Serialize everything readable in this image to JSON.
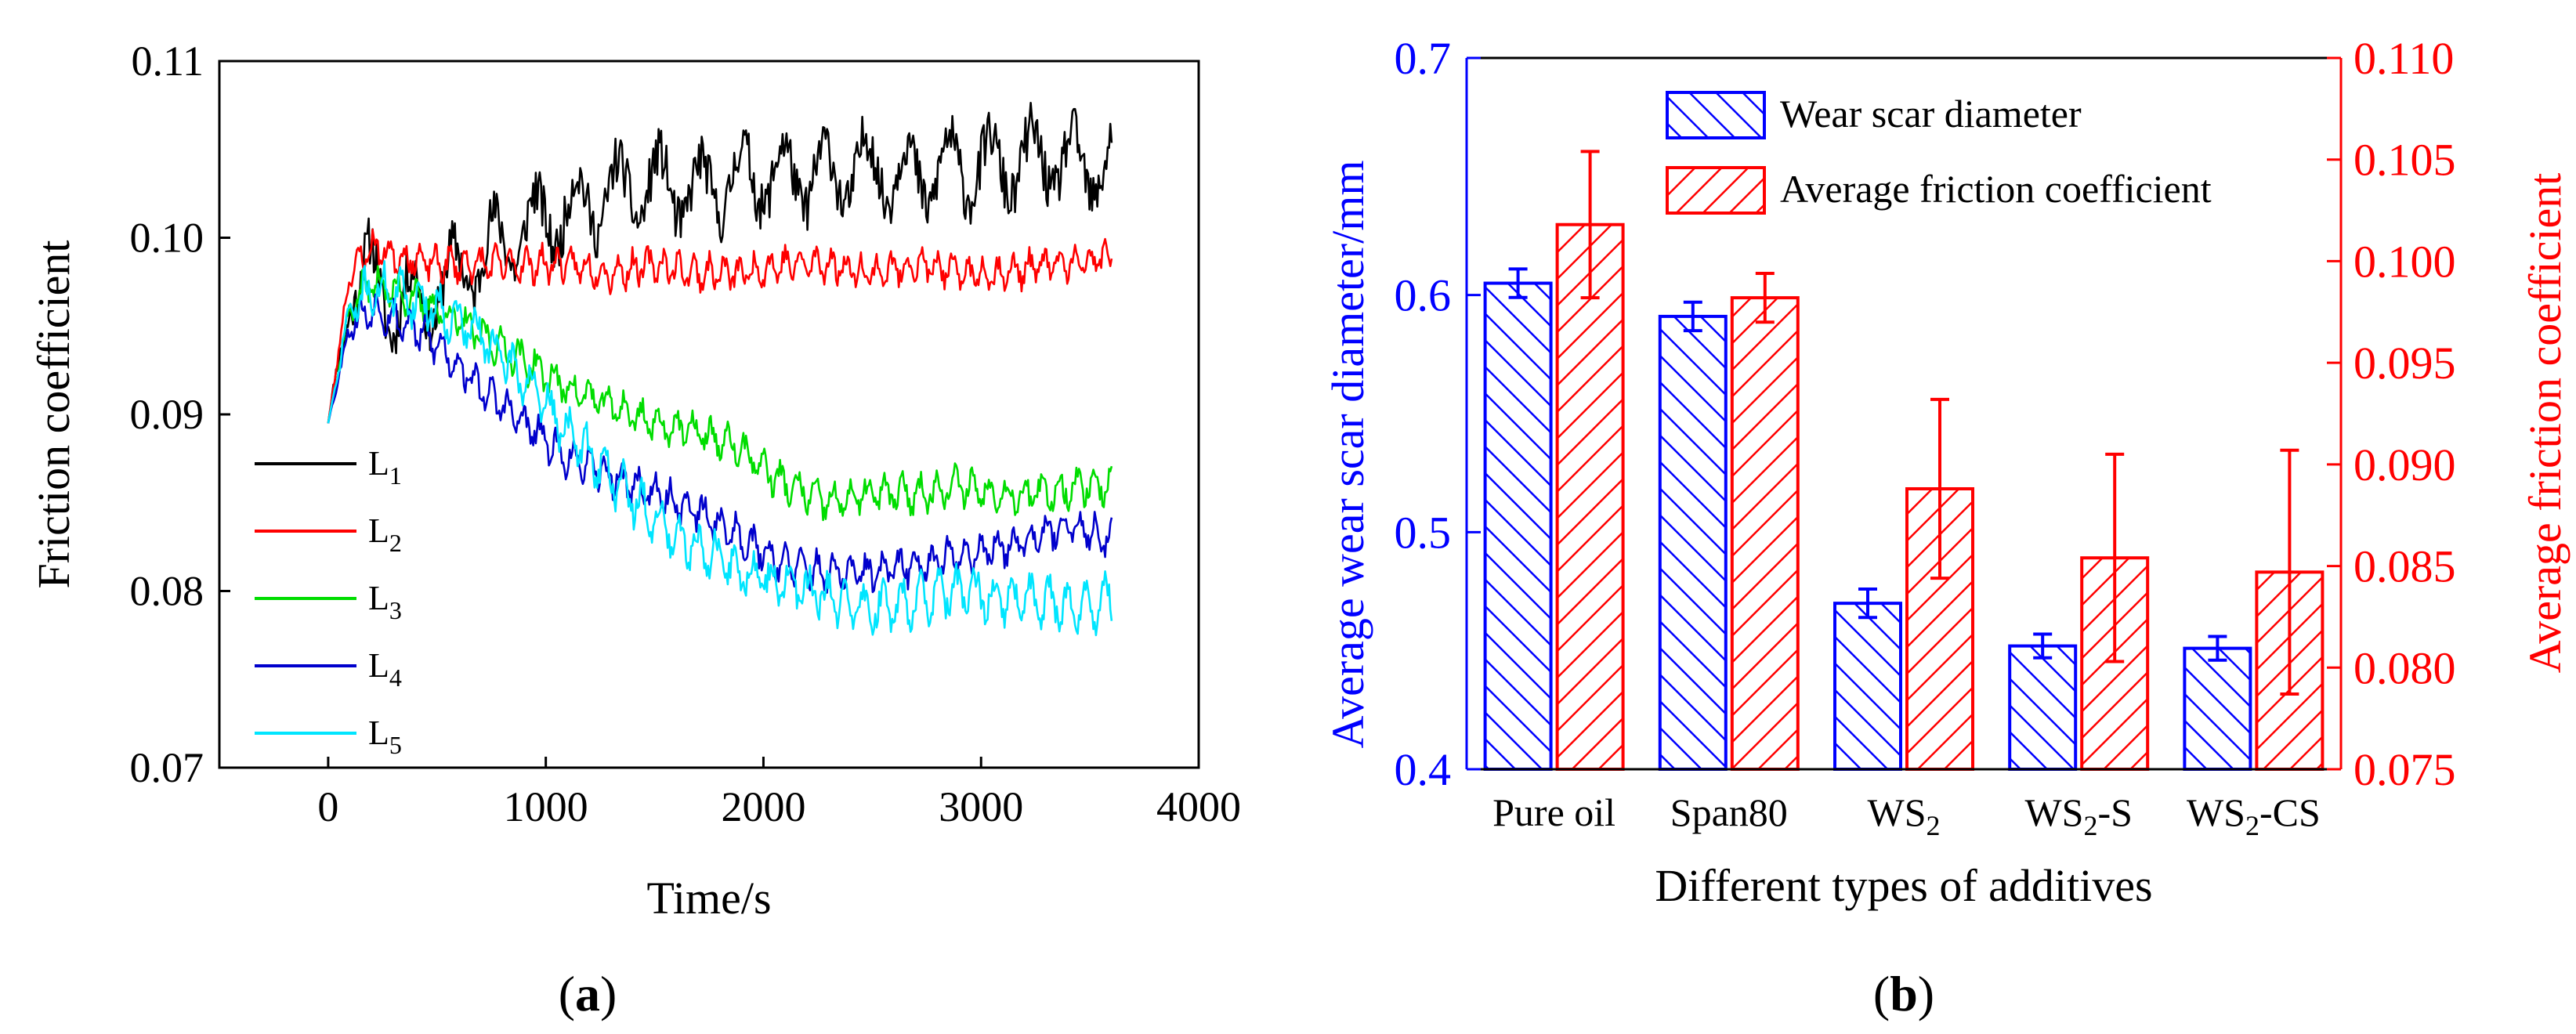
{
  "panels": [
    {
      "label": "(a)",
      "chart_data": {
        "type": "line",
        "title": "",
        "xlabel": "Time/s",
        "ylabel": "Friction coefficient",
        "xlim": [
          -500,
          4000
        ],
        "ylim": [
          0.07,
          0.11
        ],
        "xticks": [
          0,
          1000,
          2000,
          3000,
          4000
        ],
        "xtick_labels": [
          "0",
          "1000",
          "2000",
          "3000",
          "4000"
        ],
        "yticks": [
          0.07,
          0.08,
          0.09,
          0.1,
          0.11
        ],
        "ytick_labels": [
          "0.07",
          "0.08",
          "0.09",
          "0.10",
          "0.11"
        ],
        "legend_position": "bottom-left",
        "series": [
          {
            "name": "L1",
            "label_base": "L",
            "label_sub": "1",
            "color": "#000000",
            "x": [
              0,
              100,
              200,
              300,
              500,
              700,
              900,
              1100,
              1300,
              1500,
              1700,
              1900,
              2100,
              2300,
              2500,
              2700,
              2900,
              3100,
              3300,
              3450,
              3600
            ],
            "y": [
              0.0895,
              0.097,
              0.098,
              0.096,
              0.097,
              0.099,
              0.1005,
              0.1015,
              0.1025,
              0.103,
              0.1025,
              0.1035,
              0.1035,
              0.1035,
              0.104,
              0.1035,
              0.104,
              0.104,
              0.1045,
              0.104,
              0.104
            ],
            "noise": 0.0032,
            "period": 190,
            "seed": 11
          },
          {
            "name": "L2",
            "label_base": "L",
            "label_sub": "2",
            "color": "#ff0000",
            "x": [
              0,
              100,
              200,
              300,
              500,
              700,
              900,
              1100,
              1300,
              1500,
              1700,
              1900,
              2100,
              2300,
              2500,
              2700,
              2900,
              3100,
              3300,
              3450,
              3600
            ],
            "y": [
              0.0895,
              0.098,
              0.0995,
              0.099,
              0.0985,
              0.0985,
              0.0985,
              0.0985,
              0.098,
              0.0985,
              0.098,
              0.098,
              0.0985,
              0.0985,
              0.098,
              0.0985,
              0.098,
              0.098,
              0.0985,
              0.0985,
              0.099
            ],
            "noise": 0.0012,
            "period": 70,
            "seed": 23
          },
          {
            "name": "L3",
            "label_base": "L",
            "label_sub": "3",
            "color": "#00dd00",
            "x": [
              0,
              100,
              200,
              300,
              500,
              700,
              900,
              1100,
              1300,
              1500,
              1700,
              1900,
              2100,
              2300,
              2500,
              2700,
              2900,
              3100,
              3300,
              3450,
              3600
            ],
            "y": [
              0.0895,
              0.096,
              0.0975,
              0.097,
              0.096,
              0.0945,
              0.093,
              0.0915,
              0.0905,
              0.0895,
              0.089,
              0.088,
              0.086,
              0.085,
              0.0855,
              0.0855,
              0.086,
              0.0855,
              0.0855,
              0.086,
              0.086
            ],
            "noise": 0.0013,
            "period": 80,
            "seed": 37
          },
          {
            "name": "L4",
            "label_base": "L",
            "label_sub": "4",
            "color": "#0000cc",
            "x": [
              0,
              100,
              200,
              300,
              500,
              700,
              900,
              1100,
              1300,
              1500,
              1700,
              1900,
              2100,
              2300,
              2500,
              2700,
              2900,
              3100,
              3300,
              3450,
              3600
            ],
            "y": [
              0.0895,
              0.095,
              0.096,
              0.0955,
              0.094,
              0.0915,
              0.0895,
              0.0875,
              0.0865,
              0.0855,
              0.0845,
              0.083,
              0.0815,
              0.081,
              0.081,
              0.0815,
              0.082,
              0.0825,
              0.0835,
              0.0835,
              0.083
            ],
            "noise": 0.0013,
            "period": 75,
            "seed": 53
          },
          {
            "name": "L5",
            "label_base": "L",
            "label_sub": "5",
            "color": "#00e5ff",
            "x": [
              0,
              100,
              200,
              300,
              500,
              700,
              900,
              1100,
              1300,
              1500,
              1700,
              1900,
              2100,
              2300,
              2500,
              2700,
              2900,
              3100,
              3300,
              3450,
              3600
            ],
            "y": [
              0.0895,
              0.096,
              0.097,
              0.097,
              0.096,
              0.0945,
              0.092,
              0.089,
              0.0865,
              0.084,
              0.0825,
              0.081,
              0.0805,
              0.0795,
              0.079,
              0.0795,
              0.08,
              0.0795,
              0.0795,
              0.079,
              0.0795
            ],
            "noise": 0.0017,
            "period": 85,
            "seed": 71
          }
        ]
      }
    },
    {
      "label": "(b)",
      "chart_data": {
        "type": "bar",
        "title": "",
        "xlabel": "Different types of additives",
        "ylabel_left": "Average wear scar diameter/mm",
        "ylabel_right": "Average friction coefficient",
        "left_color": "#0000ff",
        "right_color": "#ff0000",
        "ylim_left": [
          0.4,
          0.7
        ],
        "ylim_right": [
          0.075,
          0.11
        ],
        "yticks_left": [
          0.4,
          0.5,
          0.6,
          0.7
        ],
        "ytick_labels_left": [
          "0.4",
          "0.5",
          "0.6",
          "0.7"
        ],
        "yticks_right": [
          0.075,
          0.08,
          0.085,
          0.09,
          0.095,
          0.1,
          0.105,
          0.11
        ],
        "ytick_labels_right": [
          "0.075",
          "0.080",
          "0.085",
          "0.090",
          "0.095",
          "0.100",
          "0.105",
          "0.110"
        ],
        "legend_position": "top-center",
        "categories": [
          {
            "base": "Pure oil",
            "sub": "",
            "suffix": ""
          },
          {
            "base": "Span80",
            "sub": "",
            "suffix": ""
          },
          {
            "base": "WS",
            "sub": "2",
            "suffix": ""
          },
          {
            "base": "WS",
            "sub": "2",
            "suffix": "-S"
          },
          {
            "base": "WS",
            "sub": "2",
            "suffix": "-CS"
          }
        ],
        "series": [
          {
            "name": "Wear scar diameter",
            "axis": "left",
            "color": "#0000ff",
            "values": [
              0.605,
              0.591,
              0.47,
              0.452,
              0.451
            ],
            "errors": [
              0.006,
              0.006,
              0.006,
              0.005,
              0.005
            ]
          },
          {
            "name": "Average friction coefficient",
            "axis": "right",
            "color": "#ff0000",
            "values": [
              0.1018,
              0.0982,
              0.0888,
              0.0854,
              0.0847
            ],
            "errors": [
              0.0036,
              0.0012,
              0.0044,
              0.0051,
              0.006
            ]
          }
        ]
      }
    }
  ]
}
